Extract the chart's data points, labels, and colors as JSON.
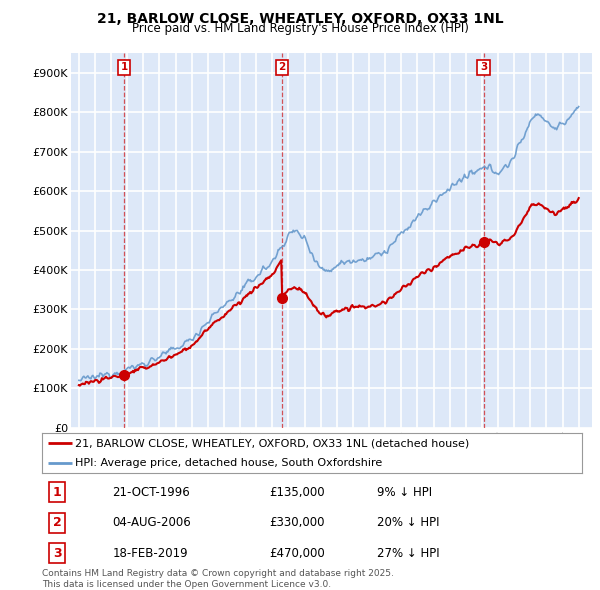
{
  "title_line1": "21, BARLOW CLOSE, WHEATLEY, OXFORD, OX33 1NL",
  "title_line2": "Price paid vs. HM Land Registry's House Price Index (HPI)",
  "transactions": [
    {
      "num": 1,
      "date_label": "21-OCT-1996",
      "price": 135000,
      "pct": "9%",
      "year_x": 1996.8
    },
    {
      "num": 2,
      "date_label": "04-AUG-2006",
      "price": 330000,
      "pct": "20%",
      "year_x": 2006.6
    },
    {
      "num": 3,
      "date_label": "18-FEB-2019",
      "price": 470000,
      "pct": "27%",
      "year_x": 2019.1
    }
  ],
  "legend_house": "21, BARLOW CLOSE, WHEATLEY, OXFORD, OX33 1NL (detached house)",
  "legend_hpi": "HPI: Average price, detached house, South Oxfordshire",
  "footer": "Contains HM Land Registry data © Crown copyright and database right 2025.\nThis data is licensed under the Open Government Licence v3.0.",
  "house_color": "#cc0000",
  "hpi_color": "#6699cc",
  "background_color": "#dde8f8",
  "grid_color": "#ffffff",
  "ylim": [
    0,
    950000
  ],
  "xlim_start": 1993.5,
  "xlim_end": 2025.8
}
